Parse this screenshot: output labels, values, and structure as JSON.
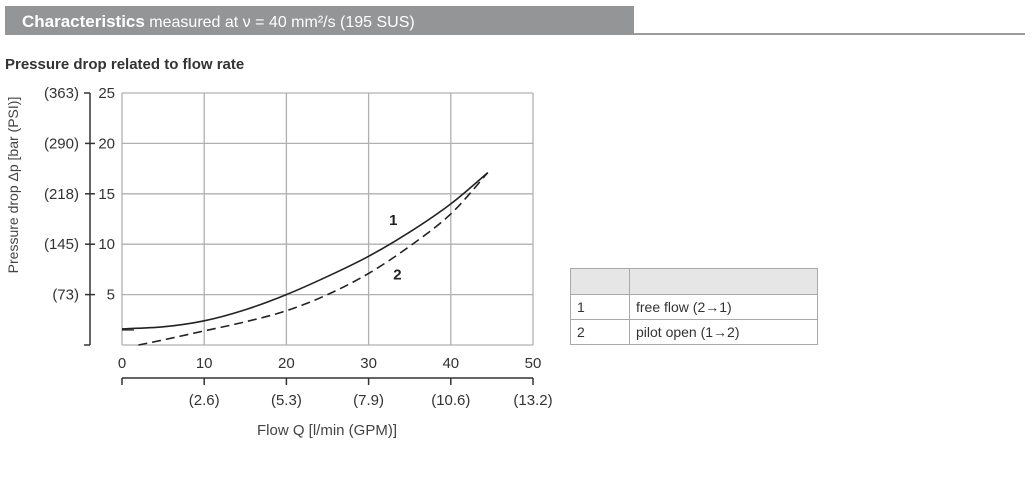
{
  "header": {
    "title_bold": "Characteristics",
    "title_rest": "measured at ν = 40 mm²/s (195 SUS)"
  },
  "subtitle": "Pressure drop related to flow rate",
  "colors": {
    "header_bg": "#949597",
    "grid": "#b0b0b0",
    "curve": "#222222",
    "legend_header_bg": "#e6e6e6"
  },
  "chart_data": {
    "type": "line",
    "title": "Pressure drop related to flow rate",
    "xlabel": "Flow Q [l/min (GPM)]",
    "ylabel": "Pressure drop Δp [bar (PSI)]",
    "xlim": [
      0,
      50
    ],
    "ylim": [
      0,
      25
    ],
    "grid": true,
    "x_ticks": [
      "0",
      "10",
      "20",
      "30",
      "40",
      "50"
    ],
    "x_ticks_secondary": [
      "(2.6)",
      "(5.3)",
      "(7.9)",
      "(10.6)",
      "(13.2)"
    ],
    "y_ticks": [
      "5",
      "10",
      "15",
      "20",
      "25"
    ],
    "y_ticks_secondary": [
      "(73)",
      "(145)",
      "(218)",
      "(290)",
      "(363)"
    ],
    "series": [
      {
        "name": "1",
        "label": "free flow (2→1)",
        "style": "solid",
        "x": [
          0,
          5,
          10,
          15,
          20,
          25,
          30,
          35,
          40,
          44.5
        ],
        "values": [
          1.6,
          1.8,
          2.4,
          3.5,
          5.0,
          6.8,
          8.8,
          11.2,
          14.0,
          17.1
        ]
      },
      {
        "name": "2",
        "label": "pilot open (1→2)",
        "style": "dashed",
        "x": [
          2,
          5,
          10,
          15,
          20,
          25,
          30,
          35,
          40,
          44.5
        ],
        "values": [
          0.0,
          0.5,
          1.4,
          2.3,
          3.4,
          5.0,
          7.1,
          9.8,
          13.0,
          17.1
        ]
      }
    ],
    "annotations": [
      {
        "text": "1",
        "x": 33.0,
        "y": 11.9
      },
      {
        "text": "2",
        "x": 33.5,
        "y": 6.5
      }
    ]
  },
  "legend": {
    "header": [
      "",
      ""
    ],
    "rows": [
      {
        "num": "1",
        "desc": "free flow (2→1)"
      },
      {
        "num": "2",
        "desc": "pilot open (1→2)"
      }
    ]
  }
}
